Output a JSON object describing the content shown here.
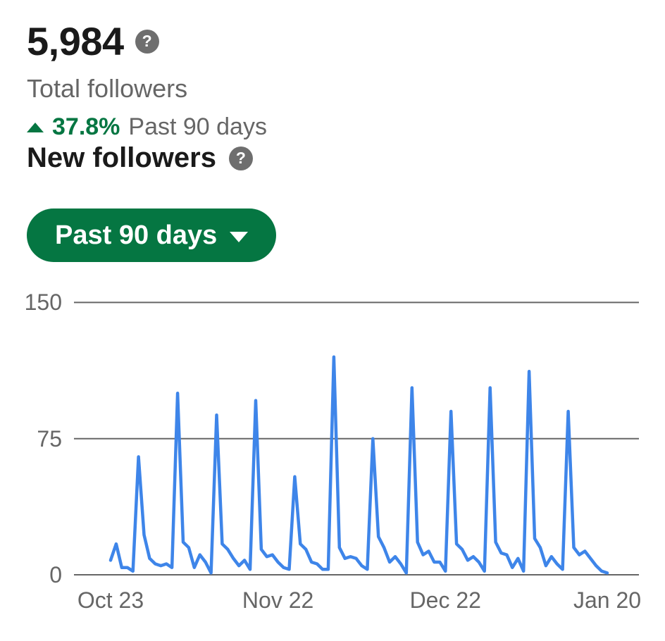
{
  "header": {
    "total_value": "5,984",
    "total_label": "Total followers",
    "change_percent": "37.8%",
    "change_period": "Past 90 days",
    "help_icon_glyph": "?"
  },
  "section": {
    "title": "New followers",
    "help_icon_glyph": "?"
  },
  "filter": {
    "label": "Past 90 days"
  },
  "colors": {
    "accent_green": "#057642",
    "line_blue": "#3E85E9",
    "grid_gray": "#666666",
    "text_dark": "#1A1A1A",
    "text_gray": "#666666"
  },
  "chart_data": {
    "type": "line",
    "title": "New followers",
    "xlabel": "",
    "ylabel": "",
    "ylim": [
      0,
      150
    ],
    "y_ticks": [
      0,
      75,
      150
    ],
    "grid": true,
    "legend": "none",
    "num_points": 90,
    "x_tick_labels": [
      "Oct 23",
      "Nov 22",
      "Dec 22",
      "Jan 20"
    ],
    "x_tick_indices": [
      0,
      30,
      60,
      89
    ],
    "line_color": "#3E85E9",
    "values": [
      8,
      17,
      4,
      4,
      2,
      65,
      22,
      9,
      6,
      5,
      6,
      4,
      100,
      18,
      15,
      4,
      11,
      7,
      1,
      88,
      17,
      14,
      9,
      5,
      8,
      3,
      96,
      14,
      10,
      11,
      7,
      4,
      3,
      54,
      17,
      14,
      7,
      6,
      3,
      3,
      120,
      15,
      9,
      10,
      9,
      5,
      3,
      75,
      21,
      15,
      7,
      10,
      6,
      1,
      103,
      18,
      11,
      13,
      7,
      7,
      2,
      90,
      17,
      14,
      8,
      10,
      7,
      2,
      103,
      18,
      12,
      11,
      4,
      9,
      2,
      112,
      20,
      15,
      5,
      10,
      6,
      3,
      90,
      15,
      11,
      13,
      9,
      5,
      2,
      1
    ]
  }
}
